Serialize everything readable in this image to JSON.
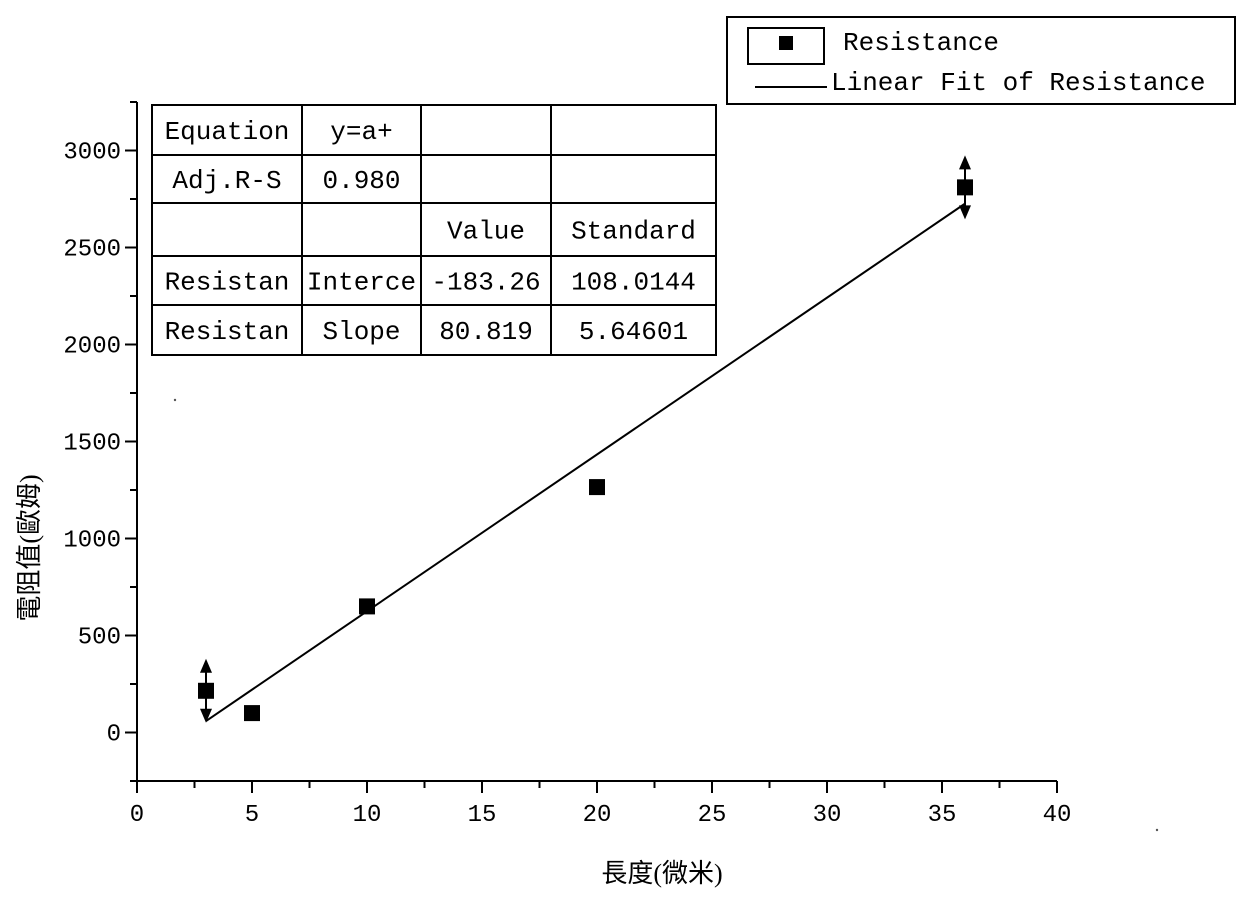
{
  "chart_data": {
    "type": "scatter",
    "xlabel": "長度(微米)",
    "ylabel": "電阻值(歐姆)",
    "xlim": [
      0,
      40
    ],
    "ylim": [
      -250,
      3250
    ],
    "x_ticks": [
      0,
      5,
      10,
      15,
      20,
      25,
      30,
      35,
      40
    ],
    "y_ticks": [
      0,
      500,
      1000,
      1500,
      2000,
      2500,
      3000
    ],
    "grid": false,
    "legend_position": "top-right",
    "legend": [
      "Resistance",
      "Linear Fit of Resistance"
    ],
    "series": [
      {
        "name": "Resistance",
        "marker": "square",
        "x": [
          3,
          5,
          10,
          20,
          36
        ],
        "y": [
          215,
          100,
          650,
          1265,
          2810
        ],
        "error_bars": [
          true,
          false,
          false,
          false,
          true
        ]
      },
      {
        "name": "Linear Fit of Resistance",
        "type": "line",
        "intercept": -183.26,
        "slope": 80.819,
        "x_range": [
          3,
          36
        ]
      }
    ],
    "fit_table": {
      "rows": [
        [
          "Equation",
          "y=a+",
          "",
          ""
        ],
        [
          "Adj.R-S",
          "0.980",
          "",
          ""
        ],
        [
          "",
          "",
          "Value",
          "Standard"
        ],
        [
          "Resistan",
          "Interce",
          "-183.26",
          "108.0144"
        ],
        [
          "Resistan",
          "Slope",
          "80.819",
          "5.64601"
        ]
      ]
    }
  }
}
